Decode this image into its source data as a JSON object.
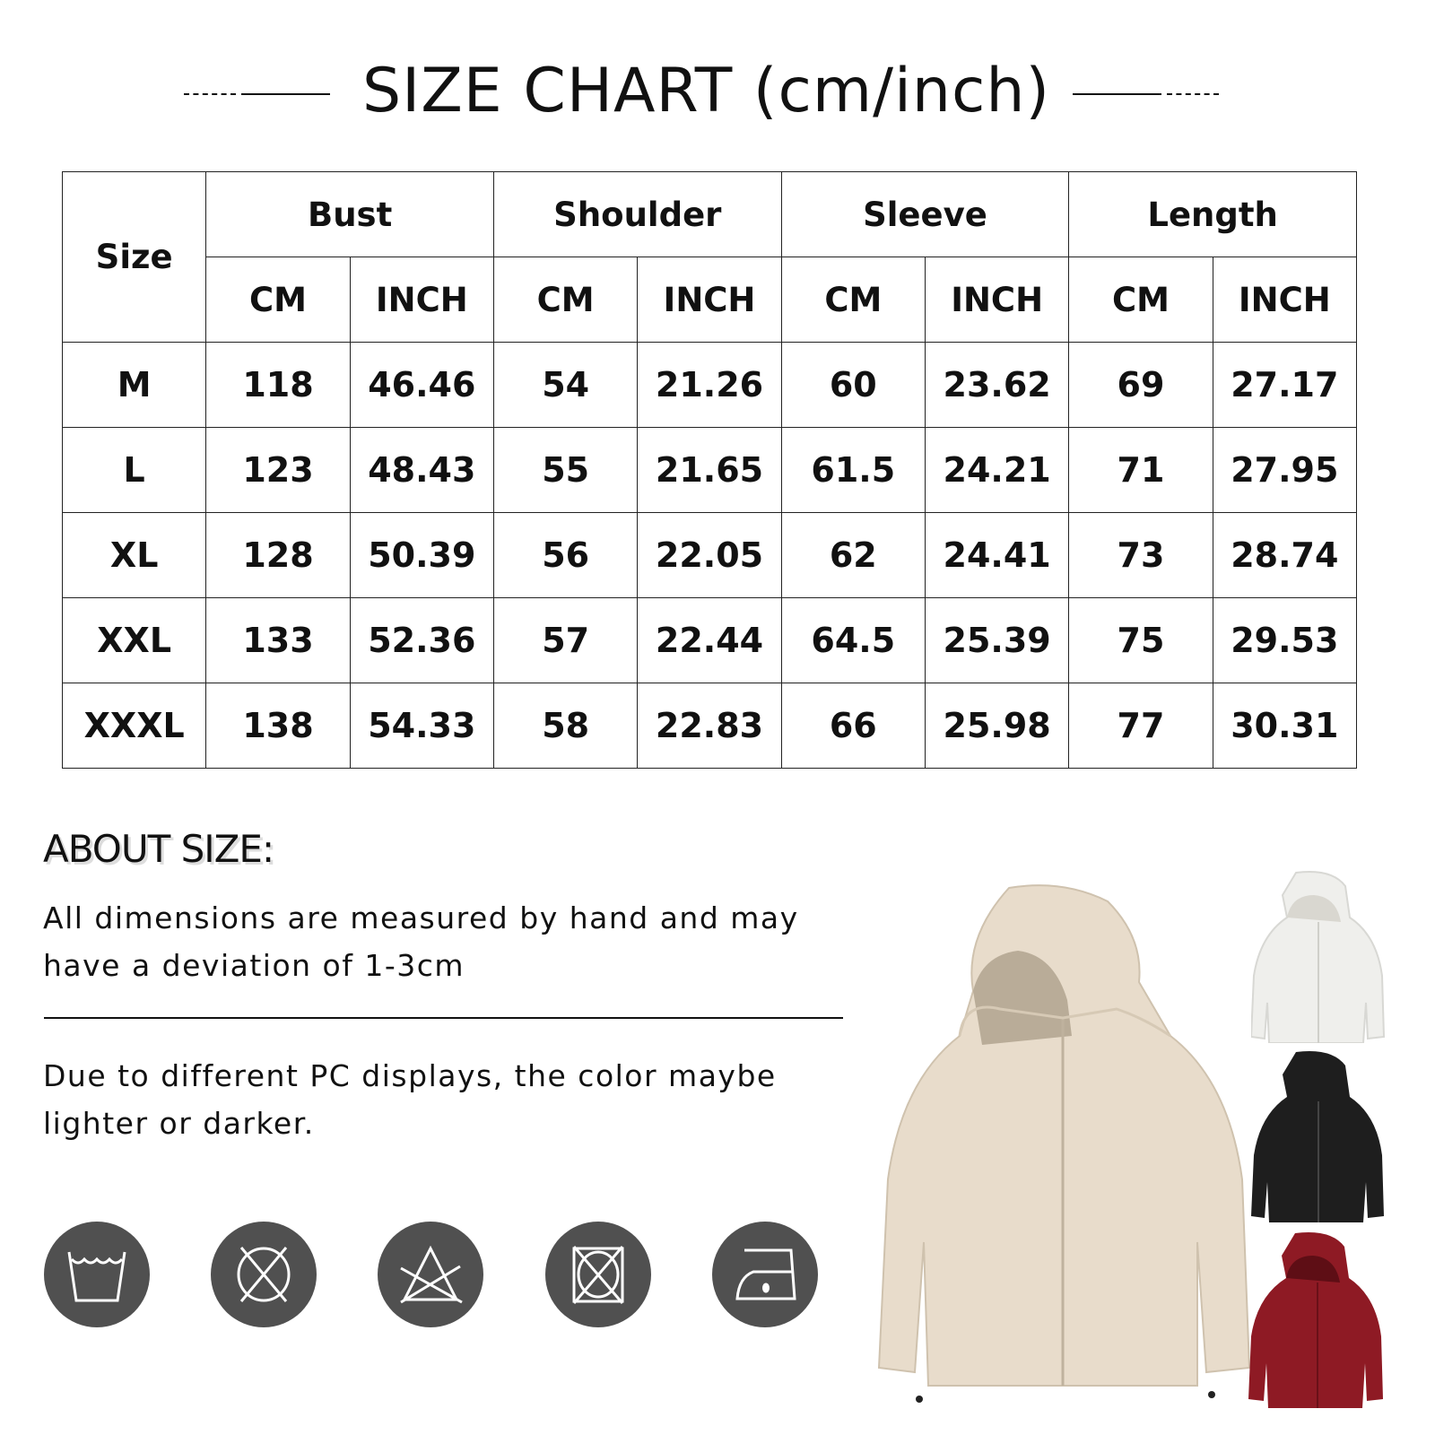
{
  "title": "SIZE CHART (cm/inch)",
  "table": {
    "size_header": "Size",
    "groups": [
      "Bust",
      "Shoulder",
      "Sleeve",
      "Length"
    ],
    "units": [
      "CM",
      "INCH",
      "CM",
      "INCH",
      "CM",
      "INCH",
      "CM",
      "INCH"
    ],
    "rows": [
      [
        "M",
        "118",
        "46.46",
        "54",
        "21.26",
        "60",
        "23.62",
        "69",
        "27.17"
      ],
      [
        "L",
        "123",
        "48.43",
        "55",
        "21.65",
        "61.5",
        "24.21",
        "71",
        "27.95"
      ],
      [
        "XL",
        "128",
        "50.39",
        "56",
        "22.05",
        "62",
        "24.41",
        "73",
        "28.74"
      ],
      [
        "XXL",
        "133",
        "52.36",
        "57",
        "22.44",
        "64.5",
        "25.39",
        "75",
        "29.53"
      ],
      [
        "XXXL",
        "138",
        "54.33",
        "58",
        "22.83",
        "66",
        "25.98",
        "77",
        "30.31"
      ]
    ]
  },
  "about": {
    "heading": "ABOUT SIZE:",
    "note1": "All dimensions are measured by hand and may have a deviation of 1-3cm",
    "note2": "Due to different PC displays, the color maybe lighter or darker."
  },
  "care_icons": [
    "hand-wash-icon",
    "do-not-tumble-dry-icon",
    "do-not-bleach-icon",
    "do-not-dry-clean-in-dryer-icon",
    "iron-low-icon"
  ],
  "colors": {
    "care_bg": "#505050",
    "khaki": "#e8dccb",
    "white": "#efefec",
    "black": "#1e1e1e",
    "red": "#8e1a24"
  }
}
